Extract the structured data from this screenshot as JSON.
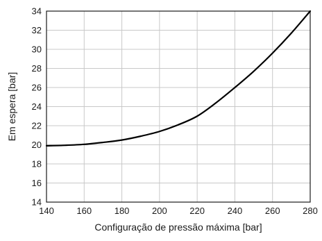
{
  "chart_data": {
    "type": "line",
    "xlabel": "Configuração de pressão máxima [bar]",
    "ylabel": "Em espera [bar]",
    "xlim": [
      140,
      280
    ],
    "ylim": [
      14,
      34
    ],
    "x_ticks": [
      140,
      160,
      180,
      200,
      220,
      240,
      260,
      280
    ],
    "y_ticks": [
      14,
      16,
      18,
      20,
      22,
      24,
      26,
      28,
      30,
      32,
      34
    ],
    "grid": true,
    "legend": "none",
    "series": [
      {
        "color": "#000000",
        "x": [
          140,
          150,
          160,
          170,
          180,
          190,
          200,
          210,
          220,
          230,
          240,
          250,
          260,
          270,
          280
        ],
        "y": [
          19.9,
          19.95,
          20.05,
          20.25,
          20.5,
          20.9,
          21.4,
          22.1,
          23.0,
          24.4,
          26.0,
          27.7,
          29.6,
          31.7,
          34.0
        ]
      }
    ]
  }
}
